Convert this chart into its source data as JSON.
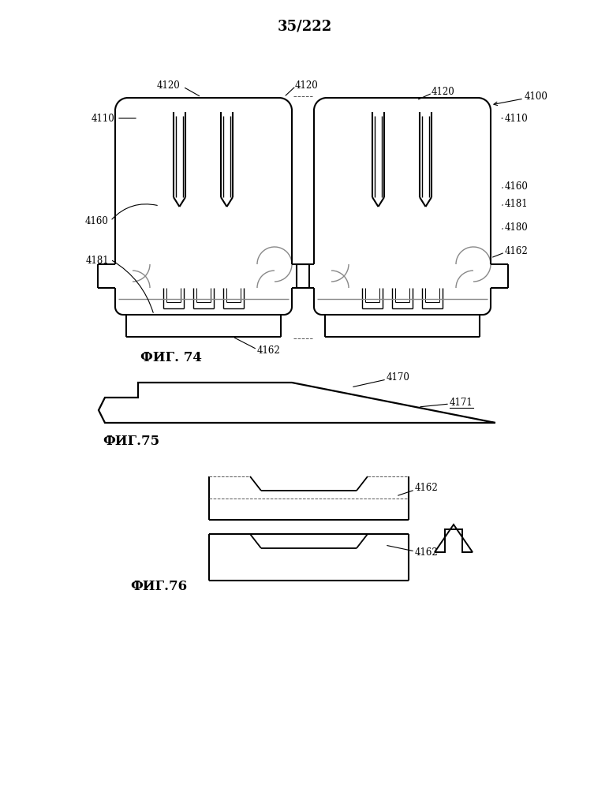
{
  "title": "35/222",
  "background_color": "#ffffff",
  "line_color": "#000000",
  "fig74_label": "ФИГ. 74",
  "fig75_label": "ФИГ.75",
  "fig76_label": "ФИГ.76",
  "lw_main": 1.5,
  "lw_thin": 1.0,
  "lw_hair": 0.7,
  "font_size_label": 8.5,
  "font_size_fig": 12,
  "font_size_title": 13
}
